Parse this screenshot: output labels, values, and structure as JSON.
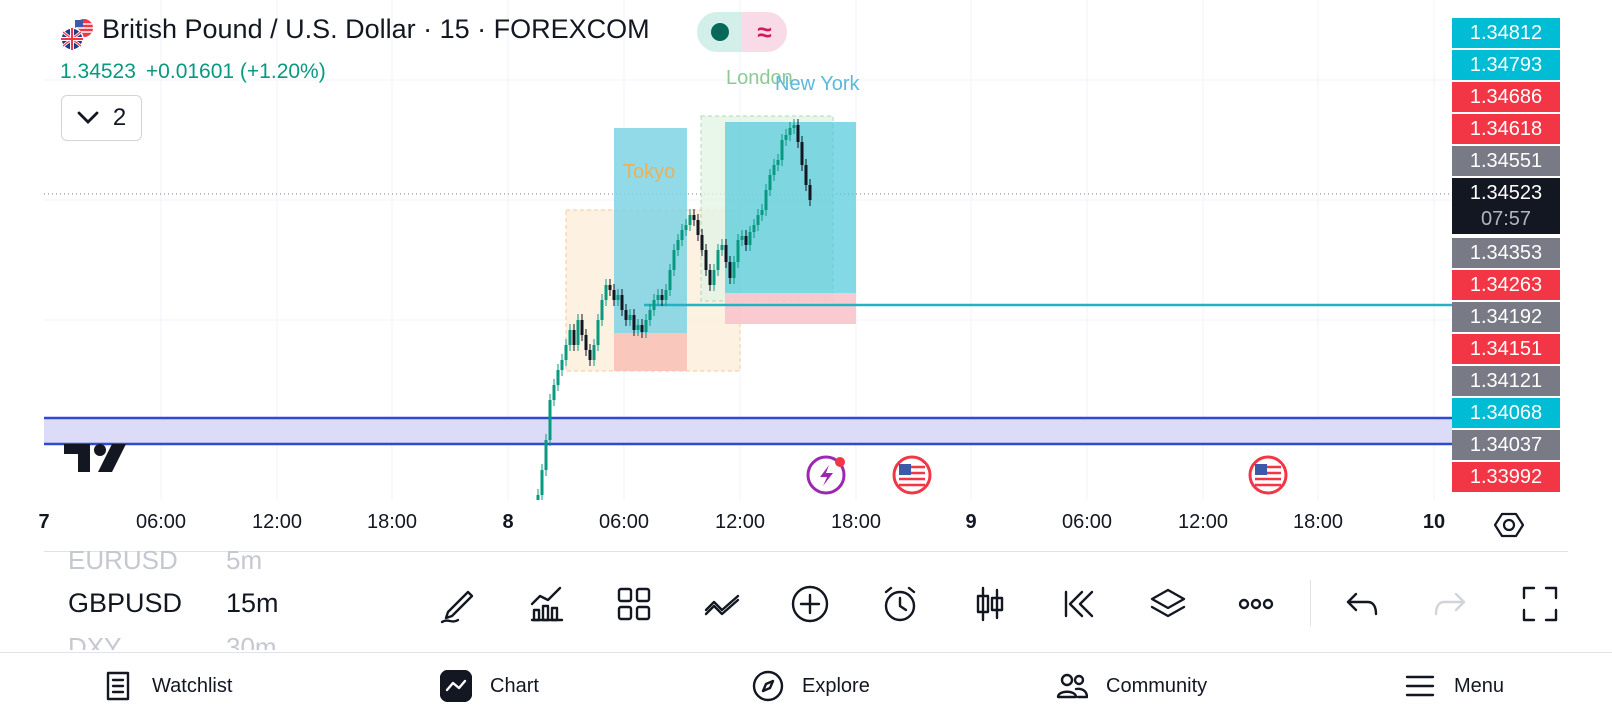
{
  "header": {
    "title": "British Pound / U.S. Dollar · 15 · FOREXCOM",
    "last_price": "1.34523",
    "change": "+0.01601 (+1.20%)",
    "indicator_count": "2",
    "status_symbol": "≈"
  },
  "sessions": {
    "tokyo": "Tokyo",
    "london": "London",
    "new_york": "New York"
  },
  "price_axis": [
    {
      "label": "1.34812",
      "color": "#00bcd4"
    },
    {
      "label": "1.34793",
      "color": "#00bcd4"
    },
    {
      "label": "1.34686",
      "color": "#f23645"
    },
    {
      "label": "1.34618",
      "color": "#f23645"
    },
    {
      "label": "1.34551",
      "color": "#787b86"
    },
    {
      "label": "1.34523",
      "color": "#131722",
      "countdown": "07:57"
    },
    {
      "label": "1.34353",
      "color": "#787b86"
    },
    {
      "label": "1.34263",
      "color": "#f23645"
    },
    {
      "label": "1.34192",
      "color": "#787b86"
    },
    {
      "label": "1.34151",
      "color": "#f23645"
    },
    {
      "label": "1.34121",
      "color": "#787b86"
    },
    {
      "label": "1.34068",
      "color": "#00bcd4"
    },
    {
      "label": "1.34037",
      "color": "#787b86"
    },
    {
      "label": "1.33992",
      "color": "#f23645"
    }
  ],
  "time_axis": [
    {
      "label": "7",
      "bold": true
    },
    {
      "label": "06:00"
    },
    {
      "label": "12:00"
    },
    {
      "label": "18:00"
    },
    {
      "label": "8",
      "bold": true
    },
    {
      "label": "06:00"
    },
    {
      "label": "12:00"
    },
    {
      "label": "18:00"
    },
    {
      "label": "9",
      "bold": true
    },
    {
      "label": "06:00"
    },
    {
      "label": "12:00"
    },
    {
      "label": "18:00"
    },
    {
      "label": "10",
      "bold": true
    }
  ],
  "symbols": {
    "prev": {
      "symbol": "EURUSD",
      "interval": "5m"
    },
    "current": {
      "symbol": "GBPUSD",
      "interval": "15m"
    },
    "next": {
      "symbol": "DXY",
      "interval": "30m"
    }
  },
  "toolbar": [
    "drawing-tools",
    "indicators",
    "layouts",
    "trendline",
    "add",
    "alert",
    "chart-type",
    "replay",
    "layers",
    "more",
    "undo",
    "redo",
    "fullscreen"
  ],
  "nav": {
    "watchlist": "Watchlist",
    "chart": "Chart",
    "explore": "Explore",
    "community": "Community",
    "menu": "Menu"
  },
  "colors": {
    "up": "#089981",
    "down": "#131722",
    "accent": "#2962ff",
    "teal": "#00bcd4",
    "red": "#f23645"
  }
}
